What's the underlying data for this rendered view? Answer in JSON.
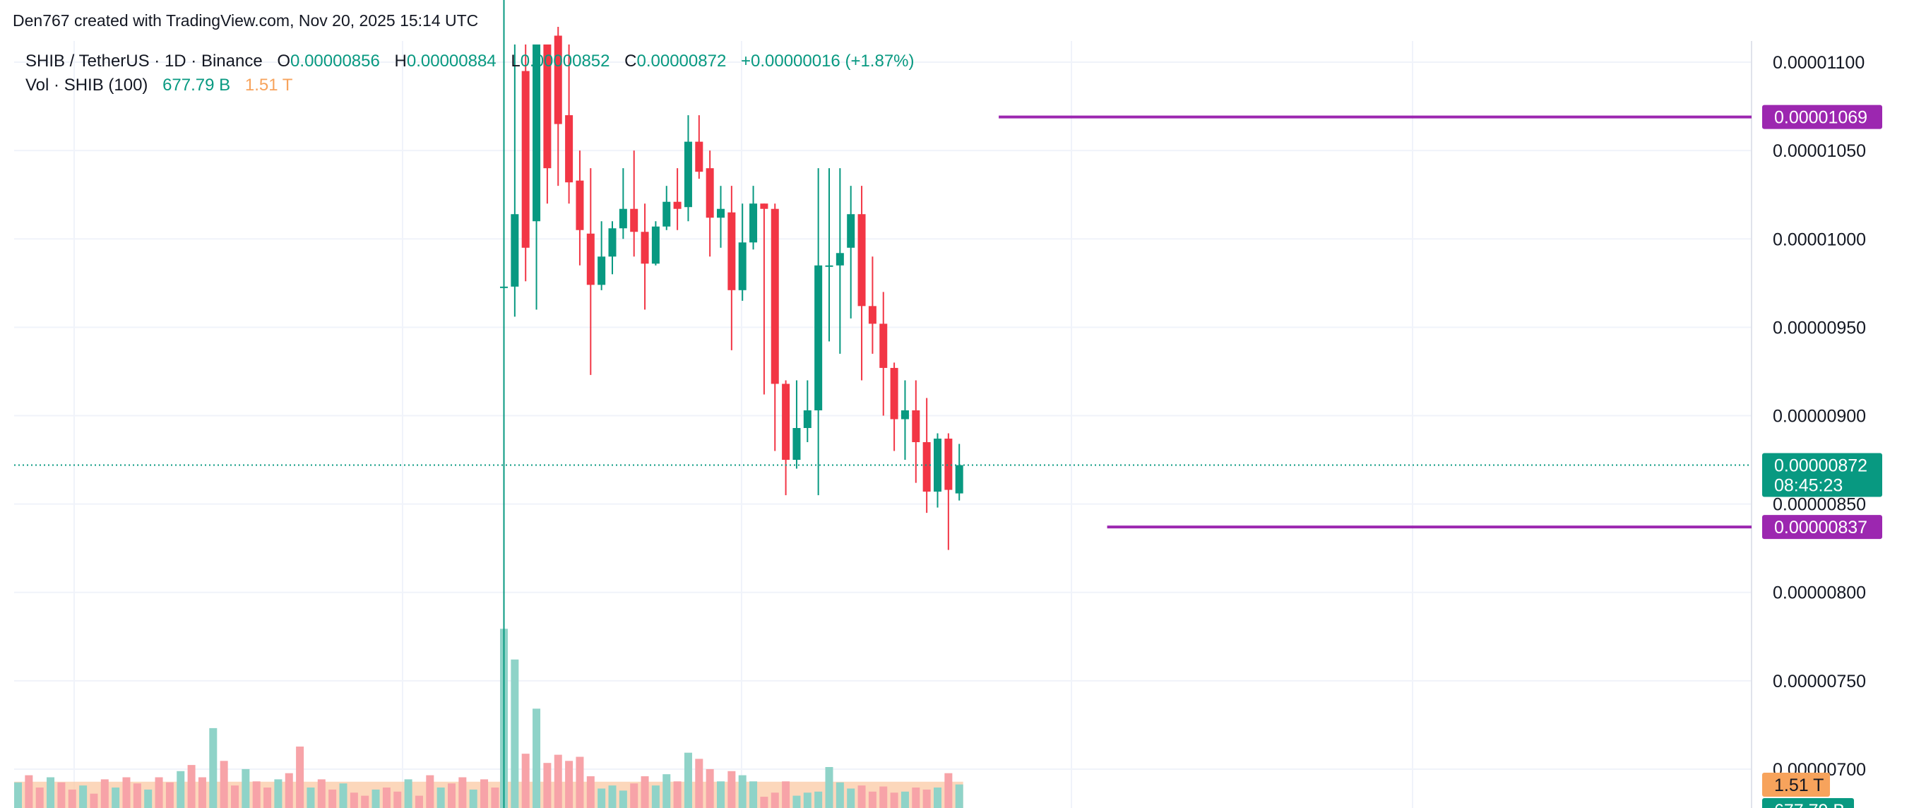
{
  "header": {
    "attribution": "Den767 created with TradingView.com, Nov 20, 2025 15:14 UTC"
  },
  "legend": {
    "symbol": "SHIB / TetherUS · 1D · Binance",
    "o_label": "O",
    "o_value": "0.00000856",
    "h_label": "H",
    "h_value": "0.00000884",
    "l_label": "L",
    "l_value": "0.00000852",
    "c_label": "C",
    "c_value": "0.00000872",
    "change": "+0.00000016 (+1.87%)",
    "vol_label": "Vol · SHIB (100)",
    "vol_value": "677.79 B",
    "vol_ma": "1.51 T"
  },
  "colors": {
    "up": "#089981",
    "down": "#f23645",
    "level": "#9c27b0",
    "vol_up": "#8fd3c8",
    "vol_down": "#f7a3a8",
    "vol_ma_fill": "#fbc9a4",
    "vol_ma_bar": "#f7a35c",
    "grid": "#f0f3fa",
    "axis_text": "#131722"
  },
  "chart_data": {
    "type": "candlestick",
    "ylim": [
      6.8e-06,
      1.11e-05
    ],
    "y_ticks": [
      "0.00001100",
      "0.00001050",
      "0.00001000",
      "0.00000950",
      "0.00000900",
      "0.00000850",
      "0.00000800",
      "0.00000750",
      "0.00000700"
    ],
    "y_tick_values": [
      1.1e-05,
      1.05e-05,
      1e-05,
      9.5e-06,
      9e-06,
      8.5e-06,
      8e-06,
      7.5e-06,
      7e-06
    ],
    "last_price": {
      "value": 8.72e-06,
      "label": "0.00000872",
      "countdown": "08:45:23"
    },
    "levels": [
      {
        "value": 1.069e-05,
        "label": "0.00001069",
        "from_index": 46
      },
      {
        "value": 8.37e-06,
        "label": "0.00000837",
        "from_index": 56
      }
    ],
    "volume_ma_label": "1.51 T",
    "volume_last_label": "677.79 B",
    "candles": [
      {
        "o": 9.73e-06,
        "h": 1.58e-05,
        "l": 6.52e-06,
        "c": 9.73e-06,
        "v": 1.75
      },
      {
        "o": 9.73e-06,
        "h": 1.11e-05,
        "l": 9.56e-06,
        "c": 1.014e-05,
        "v": 1.45
      },
      {
        "o": 1.095e-05,
        "h": 1.11e-05,
        "l": 9.76e-06,
        "c": 9.95e-06,
        "v": 0.53
      },
      {
        "o": 1.01e-05,
        "h": 1.11e-05,
        "l": 9.6e-06,
        "c": 1.11e-05,
        "v": 0.97
      },
      {
        "o": 1.11e-05,
        "h": 1.11e-05,
        "l": 1.02e-05,
        "c": 1.04e-05,
        "v": 0.44
      },
      {
        "o": 1.115e-05,
        "h": 1.12e-05,
        "l": 1.03e-05,
        "c": 1.065e-05,
        "v": 0.52
      },
      {
        "o": 1.07e-05,
        "h": 1.11e-05,
        "l": 1.02e-05,
        "c": 1.032e-05,
        "v": 0.46
      },
      {
        "o": 1.033e-05,
        "h": 1.05e-05,
        "l": 9.85e-06,
        "c": 1.005e-05,
        "v": 0.5
      },
      {
        "o": 1.003e-05,
        "h": 1.04e-05,
        "l": 9.23e-06,
        "c": 9.74e-06,
        "v": 0.31
      },
      {
        "o": 9.74e-06,
        "h": 1.01e-05,
        "l": 9.71e-06,
        "c": 9.9e-06,
        "v": 0.19
      },
      {
        "o": 9.9e-06,
        "h": 1.01e-05,
        "l": 9.8e-06,
        "c": 1.006e-05,
        "v": 0.22
      },
      {
        "o": 1.006e-05,
        "h": 1.04e-05,
        "l": 1e-05,
        "c": 1.017e-05,
        "v": 0.17
      },
      {
        "o": 1.017e-05,
        "h": 1.05e-05,
        "l": 9.9e-06,
        "c": 1.004e-05,
        "v": 0.24
      },
      {
        "o": 1.004e-05,
        "h": 1.02e-05,
        "l": 9.6e-06,
        "c": 9.86e-06,
        "v": 0.31
      },
      {
        "o": 9.86e-06,
        "h": 1.01e-05,
        "l": 9.85e-06,
        "c": 1.007e-05,
        "v": 0.22
      },
      {
        "o": 1.007e-05,
        "h": 1.03e-05,
        "l": 1.005e-05,
        "c": 1.021e-05,
        "v": 0.33
      },
      {
        "o": 1.021e-05,
        "h": 1.04e-05,
        "l": 1.005e-05,
        "c": 1.017e-05,
        "v": 0.26
      },
      {
        "o": 1.018e-05,
        "h": 1.07e-05,
        "l": 1.01e-05,
        "c": 1.055e-05,
        "v": 0.54
      },
      {
        "o": 1.055e-05,
        "h": 1.07e-05,
        "l": 1.034e-05,
        "c": 1.038e-05,
        "v": 0.48
      },
      {
        "o": 1.04e-05,
        "h": 1.05e-05,
        "l": 9.9e-06,
        "c": 1.012e-05,
        "v": 0.38
      },
      {
        "o": 1.012e-05,
        "h": 1.03e-05,
        "l": 9.95e-06,
        "c": 1.017e-05,
        "v": 0.26
      },
      {
        "o": 1.015e-05,
        "h": 1.03e-05,
        "l": 9.37e-06,
        "c": 9.71e-06,
        "v": 0.36
      },
      {
        "o": 9.71e-06,
        "h": 1.02e-05,
        "l": 9.65e-06,
        "c": 9.98e-06,
        "v": 0.32
      },
      {
        "o": 9.98e-06,
        "h": 1.03e-05,
        "l": 9.94e-06,
        "c": 1.02e-05,
        "v": 0.26
      },
      {
        "o": 1.02e-05,
        "h": 1.02e-05,
        "l": 9.12e-06,
        "c": 1.017e-05,
        "v": 0.11
      },
      {
        "o": 1.017e-05,
        "h": 1.02e-05,
        "l": 8.8e-06,
        "c": 9.18e-06,
        "v": 0.15
      },
      {
        "o": 9.18e-06,
        "h": 9.2e-06,
        "l": 8.55e-06,
        "c": 8.75e-06,
        "v": 0.26
      },
      {
        "o": 8.75e-06,
        "h": 9.2e-06,
        "l": 8.7e-06,
        "c": 8.93e-06,
        "v": 0.12
      },
      {
        "o": 8.93e-06,
        "h": 9.2e-06,
        "l": 8.85e-06,
        "c": 9.03e-06,
        "v": 0.15
      },
      {
        "o": 9.03e-06,
        "h": 1.04e-05,
        "l": 8.55e-06,
        "c": 9.85e-06,
        "v": 0.16
      },
      {
        "o": 9.85e-06,
        "h": 1.04e-05,
        "l": 9.42e-06,
        "c": 9.85e-06,
        "v": 0.4
      },
      {
        "o": 9.85e-06,
        "h": 1.04e-05,
        "l": 9.35e-06,
        "c": 9.92e-06,
        "v": 0.25
      },
      {
        "o": 9.95e-06,
        "h": 1.03e-05,
        "l": 9.55e-06,
        "c": 1.014e-05,
        "v": 0.19
      },
      {
        "o": 1.014e-05,
        "h": 1.03e-05,
        "l": 9.2e-06,
        "c": 9.62e-06,
        "v": 0.22
      },
      {
        "o": 9.62e-06,
        "h": 9.9e-06,
        "l": 9.35e-06,
        "c": 9.52e-06,
        "v": 0.16
      },
      {
        "o": 9.52e-06,
        "h": 9.7e-06,
        "l": 9e-06,
        "c": 9.27e-06,
        "v": 0.21
      },
      {
        "o": 9.27e-06,
        "h": 9.3e-06,
        "l": 8.8e-06,
        "c": 8.98e-06,
        "v": 0.15
      },
      {
        "o": 8.98e-06,
        "h": 9.2e-06,
        "l": 8.75e-06,
        "c": 9.03e-06,
        "v": 0.16
      },
      {
        "o": 9.03e-06,
        "h": 9.2e-06,
        "l": 8.62e-06,
        "c": 8.85e-06,
        "v": 0.2
      },
      {
        "o": 8.85e-06,
        "h": 9.1e-06,
        "l": 8.45e-06,
        "c": 8.57e-06,
        "v": 0.18
      },
      {
        "o": 8.57e-06,
        "h": 8.9e-06,
        "l": 8.48e-06,
        "c": 8.87e-06,
        "v": 0.2
      },
      {
        "o": 8.87e-06,
        "h": 8.9e-06,
        "l": 8.24e-06,
        "c": 8.58e-06,
        "v": 0.34
      },
      {
        "o": 8.56e-06,
        "h": 8.84e-06,
        "l": 8.52e-06,
        "c": 8.72e-06,
        "v": 0.23
      }
    ]
  }
}
